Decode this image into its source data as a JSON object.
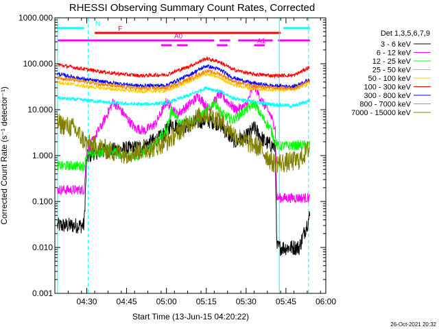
{
  "chart_data": {
    "type": "line",
    "title": "RHESSI Observing Summary Count Rates, Corrected",
    "xlabel": "Start Time (13-Jun-15 04:20:22)",
    "ylabel": "Corrected Count Rate (s⁻¹ detector⁻¹)",
    "yscale": "log",
    "ylim": [
      0.001,
      1000
    ],
    "xlim_min": [
      -2,
      100
    ],
    "ytick_labels": [
      "0.001",
      "0.010",
      "0.100",
      "1.000",
      "10.000",
      "100.000",
      "1000.000"
    ],
    "xtick_labels": [
      "04:30",
      "04:45",
      "05:00",
      "05:15",
      "05:30",
      "05:45",
      "06:00"
    ],
    "xtick_values_min": [
      10,
      25,
      40,
      55,
      70,
      85,
      100
    ],
    "legend_title": "Det 1,3,5,6,7,9",
    "timestamp": "26-Oct-2021 20:32",
    "series": [
      {
        "name": "3 - 6 keV",
        "color": "#000000",
        "x": [
          -1,
          9,
          10,
          13,
          20,
          30,
          38,
          42,
          45,
          50,
          55,
          60,
          63,
          66,
          70,
          73,
          77,
          81,
          81.5,
          90,
          94
        ],
        "y": [
          0.03,
          0.03,
          0.9,
          1.2,
          1.3,
          1.5,
          2.5,
          5,
          4,
          5,
          6,
          5,
          3,
          2,
          2.5,
          4,
          2,
          1.5,
          0.01,
          0.01,
          0.05
        ]
      },
      {
        "name": "6 - 12 keV",
        "color": "#ff00ff",
        "x": [
          -1,
          9,
          10,
          13,
          16,
          20,
          24,
          28,
          32,
          36,
          40,
          44,
          48,
          52,
          56,
          60,
          63,
          66,
          70,
          73,
          76,
          79,
          81,
          81.5,
          90,
          94
        ],
        "y": [
          0.18,
          0.18,
          1.2,
          2.5,
          5,
          15,
          8,
          4,
          3.5,
          5,
          15,
          8,
          12,
          20,
          10,
          22,
          15,
          10,
          12,
          35,
          15,
          8,
          4,
          0.12,
          0.12,
          0.12
        ]
      },
      {
        "name": "12 - 25 keV",
        "color": "#00ff00",
        "x": [
          -1,
          9,
          10,
          15,
          20,
          25,
          30,
          35,
          40,
          42,
          45,
          50,
          55,
          58,
          61,
          65,
          70,
          73,
          76,
          79,
          81,
          82,
          94
        ],
        "y": [
          0.6,
          0.6,
          1.0,
          1.2,
          1.3,
          0.9,
          1.0,
          1.6,
          3.5,
          10,
          5,
          6,
          9,
          15,
          8,
          6,
          10,
          14,
          7,
          4,
          2,
          1.6,
          1.7
        ]
      },
      {
        "name": "25 - 50 keV",
        "color": "#00ffff",
        "x": [
          -1,
          10,
          20,
          30,
          40,
          48,
          55,
          60,
          65,
          72,
          80,
          88,
          94
        ],
        "y": [
          18,
          16,
          14,
          13,
          14,
          20,
          30,
          25,
          18,
          15,
          13,
          12,
          16
        ]
      },
      {
        "name": "50 - 100 keV",
        "color": "#ffcc00",
        "x": [
          -1,
          10,
          20,
          30,
          40,
          48,
          55,
          60,
          65,
          72,
          80,
          88,
          94
        ],
        "y": [
          40,
          32,
          28,
          25,
          26,
          40,
          60,
          50,
          35,
          29,
          27,
          28,
          38
        ]
      },
      {
        "name": "100 - 300 keV",
        "color": "#ff0000",
        "x": [
          -1,
          10,
          20,
          30,
          40,
          48,
          55,
          60,
          65,
          72,
          80,
          88,
          94
        ],
        "y": [
          95,
          75,
          62,
          55,
          58,
          85,
          130,
          110,
          75,
          60,
          55,
          56,
          85
        ]
      },
      {
        "name": "300 - 800 keV",
        "color": "#0000ff",
        "x": [
          -1,
          10,
          20,
          30,
          40,
          48,
          55,
          60,
          65,
          72,
          80,
          88,
          94
        ],
        "y": [
          60,
          45,
          38,
          33,
          34,
          55,
          90,
          75,
          50,
          38,
          33,
          32,
          45
        ]
      },
      {
        "name": "800 - 7000 keV",
        "color": "#ff8000",
        "x": [
          -1,
          10,
          20,
          30,
          40,
          48,
          55,
          60,
          65,
          72,
          80,
          88,
          94
        ],
        "y": [
          50,
          40,
          33,
          29,
          30,
          45,
          70,
          60,
          42,
          33,
          30,
          29,
          42
        ]
      },
      {
        "name": "7000 - 15000 keV",
        "color": "#808000",
        "x": [
          -1,
          5,
          10,
          15,
          20,
          25,
          30,
          35,
          40,
          45,
          50,
          55,
          60,
          65,
          70,
          75,
          80,
          85,
          90,
          94
        ],
        "y": [
          5,
          4,
          1.8,
          1.5,
          1.2,
          1.1,
          1.3,
          1.5,
          2,
          3.5,
          6,
          8,
          6,
          3,
          2,
          1.5,
          0.7,
          0.7,
          0.8,
          1.5
        ]
      }
    ],
    "flags": [
      {
        "label": "N",
        "color": "#00ffff",
        "bars_min": [
          [
            -1,
            9
          ],
          [
            84,
            94
          ]
        ]
      },
      {
        "label": "F",
        "color": "#ff0000",
        "bars_min": [
          [
            13,
            83
          ]
        ]
      },
      {
        "label": "A0",
        "color": "#ff00ff",
        "bars_min": [
          [
            -1,
            58
          ],
          [
            60,
            64
          ],
          [
            67,
            80
          ],
          [
            82,
            94
          ]
        ]
      },
      {
        "label": "A1",
        "color": "#ff00ff",
        "bars_min": [
          [
            38,
            42
          ],
          [
            44,
            48
          ],
          [
            59,
            63
          ],
          [
            73,
            77
          ]
        ]
      }
    ],
    "vertical_lines_min": [
      {
        "x": -1,
        "color": "#00ffff",
        "style": "solid"
      },
      {
        "x": 10.5,
        "color": "#00ffff",
        "style": "dashed"
      },
      {
        "x": 82.5,
        "color": "#00ffff",
        "style": "solid"
      },
      {
        "x": 93.5,
        "color": "#00ffff",
        "style": "dashed"
      }
    ]
  }
}
